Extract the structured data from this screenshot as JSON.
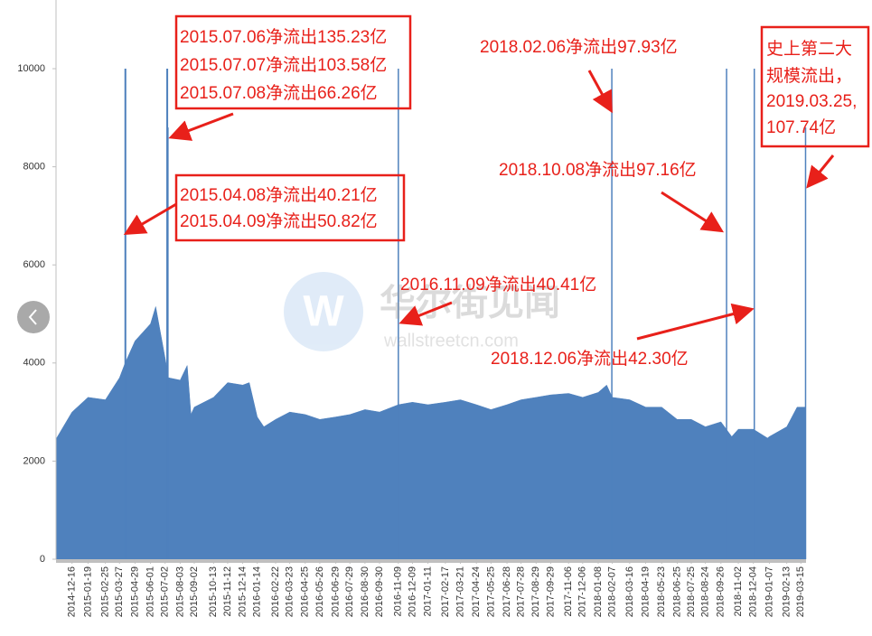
{
  "chart_data": {
    "type": "area",
    "color": "#4f81bd",
    "x": [
      "2014-11-12",
      "2014-12-16",
      "2015-01-19",
      "2015-02-25",
      "2015-03-27",
      "2015-04-08",
      "2015-04-29",
      "2015-06-01",
      "2015-06-12",
      "2015-07-02",
      "2015-07-09",
      "2015-08-03",
      "2015-08-18",
      "2015-08-26",
      "2015-09-02",
      "2015-10-13",
      "2015-11-12",
      "2015-12-14",
      "2015-12-28",
      "2016-01-14",
      "2016-01-28",
      "2016-02-22",
      "2016-03-23",
      "2016-04-25",
      "2016-05-26",
      "2016-06-29",
      "2016-07-29",
      "2016-08-30",
      "2016-09-30",
      "2016-11-09",
      "2016-12-09",
      "2017-01-11",
      "2017-02-17",
      "2017-03-21",
      "2017-04-24",
      "2017-05-25",
      "2017-06-28",
      "2017-07-28",
      "2017-08-29",
      "2017-09-29",
      "2017-11-06",
      "2017-12-06",
      "2018-01-08",
      "2018-01-26",
      "2018-02-07",
      "2018-03-16",
      "2018-04-19",
      "2018-05-23",
      "2018-06-25",
      "2018-07-25",
      "2018-08-24",
      "2018-09-26",
      "2018-10-19",
      "2018-11-02",
      "2018-12-04",
      "2019-01-03",
      "2019-01-07",
      "2019-02-13",
      "2019-03-07",
      "2019-03-25"
    ],
    "values": [
      2450,
      3000,
      3300,
      3250,
      3700,
      4000,
      4450,
      4800,
      5150,
      4100,
      3700,
      3650,
      3950,
      2950,
      3100,
      3300,
      3600,
      3550,
      3600,
      2900,
      2700,
      2850,
      3000,
      2950,
      2850,
      2900,
      2950,
      3050,
      3000,
      3150,
      3200,
      3150,
      3200,
      3250,
      3150,
      3050,
      3150,
      3250,
      3300,
      3350,
      3380,
      3300,
      3400,
      3550,
      3300,
      3250,
      3100,
      3100,
      2850,
      2850,
      2700,
      2800,
      2500,
      2650,
      2650,
      2470,
      2500,
      2700,
      3100,
      3100
    ],
    "spikes": {
      "x": [
        "2015-04-08",
        "2015-04-09",
        "2015-07-06",
        "2015-07-07",
        "2015-07-08",
        "2016-11-09",
        "2018-02-06",
        "2018-10-08",
        "2018-12-06",
        "2019-03-25"
      ],
      "values": [
        10000,
        10000,
        10000,
        10000,
        8800,
        10000,
        10000,
        10000,
        10000,
        8800
      ]
    },
    "xlim": [
      "2014-11-12",
      "2019-03-26"
    ],
    "ylim": [
      0,
      11400
    ],
    "yticks": [
      0,
      2000,
      4000,
      6000,
      8000,
      10000
    ],
    "xticks": [
      "2014-12-16",
      "2015-01-19",
      "2015-02-25",
      "2015-03-27",
      "2015-04-29",
      "2015-06-01",
      "2015-07-02",
      "2015-08-03",
      "2015-09-02",
      "2015-10-13",
      "2015-11-12",
      "2015-12-14",
      "2016-01-14",
      "2016-02-22",
      "2016-03-23",
      "2016-04-25",
      "2016-05-26",
      "2016-06-29",
      "2016-07-29",
      "2016-08-30",
      "2016-09-30",
      "2016-11-09",
      "2016-12-09",
      "2017-01-11",
      "2017-02-17",
      "2017-03-21",
      "2017-04-24",
      "2017-05-25",
      "2017-06-28",
      "2017-07-28",
      "2017-08-29",
      "2017-09-29",
      "2017-11-06",
      "2017-12-06",
      "2018-01-08",
      "2018-02-07",
      "2018-03-16",
      "2018-04-19",
      "2018-05-23",
      "2018-06-25",
      "2018-07-25",
      "2018-08-24",
      "2018-09-26",
      "2018-11-02",
      "2018-12-04",
      "2019-01-07",
      "2019-02-13",
      "2019-03-15"
    ],
    "annotations": [
      {
        "lines": [
          "2015.07.06净流出135.23亿",
          "2015.07.07净流出103.58亿",
          "2015.07.08净流出66.26亿"
        ]
      },
      {
        "lines": [
          "2015.04.08净流出40.21亿",
          "2015.04.09净流出50.82亿"
        ]
      },
      {
        "lines": [
          "2018.02.06净流出97.93亿"
        ]
      },
      {
        "lines": [
          "2018.10.08净流出97.16亿"
        ]
      },
      {
        "lines": [
          "2016.11.09净流出40.41亿"
        ]
      },
      {
        "lines": [
          "2018.12.06净流出42.30亿"
        ]
      },
      {
        "lines": [
          "史上第二大",
          "规模流出，",
          "2019.03.25,",
          "107.74亿"
        ]
      }
    ],
    "watermark": {
      "name": "华尔街见闻",
      "url": "wallstreetcn.com"
    }
  }
}
